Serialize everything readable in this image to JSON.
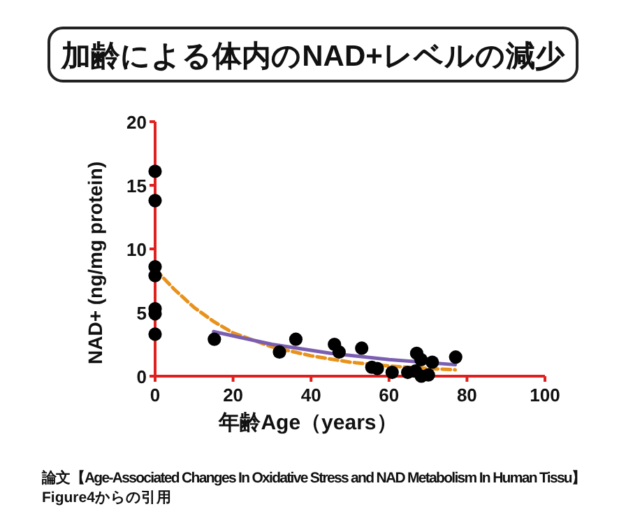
{
  "chart_data": {
    "type": "scatter",
    "title": "加齢による体内のNAD+レベルの減少",
    "xlabel": "年齢Age（years）",
    "ylabel": "NAD+ (ng/mg protein)",
    "annotations": [
      "論文【Age-Associated Changes In Oxidative Stress and NAD Metabolism In Human Tissu】",
      "Figure4からの引用"
    ],
    "xlim": [
      0,
      100
    ],
    "ylim": [
      0,
      20
    ],
    "xticks": [
      0,
      20,
      40,
      60,
      80,
      100
    ],
    "yticks": [
      0,
      5,
      10,
      15,
      20
    ],
    "grid": false,
    "series": [
      {
        "color": "#000000",
        "marker": "circle",
        "x": [
          0,
          0,
          0,
          0,
          0,
          0,
          0,
          15.2,
          31.9,
          36.1,
          46,
          47.2,
          53,
          55.6,
          57,
          60.8,
          64.8,
          66.8,
          67.1,
          68.2,
          68.3,
          70.1,
          71.1,
          77.1
        ],
        "values": [
          16.1,
          13.8,
          8.6,
          7.9,
          5.3,
          4.9,
          3.3,
          2.9,
          1.9,
          2.9,
          2.5,
          1.9,
          2.2,
          0.7,
          0.6,
          0.3,
          0.3,
          0.4,
          1.8,
          1.3,
          0,
          0.1,
          1.1,
          1.5
        ]
      },
      {
        "type": "line",
        "color": "#e8921c",
        "line_style": "dashed",
        "x": [
          0,
          5,
          10,
          15,
          20,
          30,
          40,
          50,
          60,
          70,
          77
        ],
        "values": [
          8.4,
          6.8,
          5.4,
          4.3,
          3.4,
          2.3,
          1.6,
          1.1,
          0.8,
          0.6,
          0.5
        ]
      },
      {
        "type": "line",
        "color": "#7a5fb0",
        "line_style": "solid",
        "x": [
          15,
          30,
          45,
          60,
          77
        ],
        "values": [
          3.5,
          2.5,
          1.8,
          1.3,
          0.9
        ]
      }
    ]
  }
}
